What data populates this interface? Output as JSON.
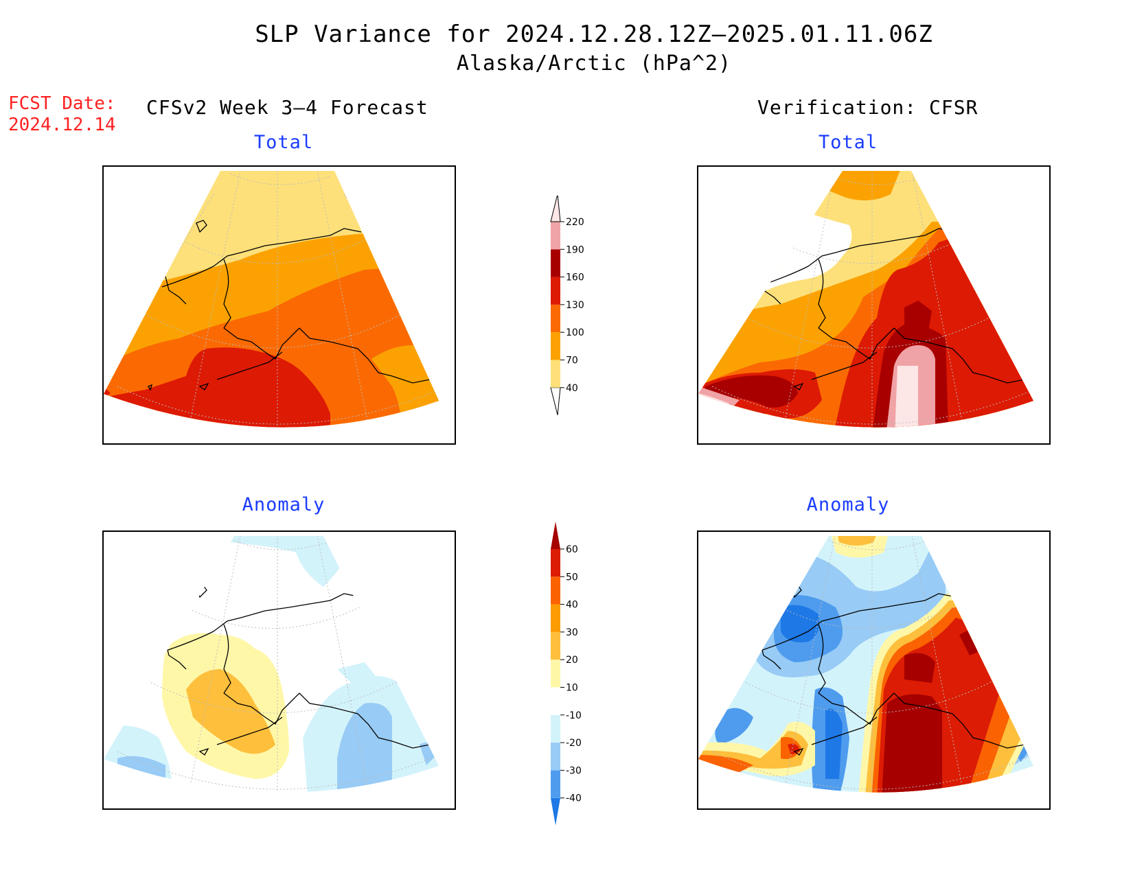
{
  "title": "SLP Variance for 2024.12.28.12Z—2025.01.11.06Z",
  "subtitle": "Alaska/Arctic (hPa^2)",
  "fcst_label": "FCST Date:",
  "fcst_date": "2024.12.14",
  "left_heading": "CFSv2 Week 3—4 Forecast",
  "right_heading": "Verification: CFSR",
  "panel_titles": {
    "fc_total": "Total",
    "vf_total": "Total",
    "fc_anom": "Anomaly",
    "vf_anom": "Anomaly"
  },
  "total_scale": {
    "levels": [
      "40",
      "70",
      "100",
      "130",
      "160",
      "190",
      "220"
    ],
    "colors": [
      "#fde07a",
      "#fba202",
      "#fb6a02",
      "#dd1a04",
      "#a80000",
      "#f0a3a6",
      "#fde6e6"
    ]
  },
  "anomaly_scale": {
    "levels": [
      "-40",
      "-30",
      "-20",
      "-10",
      "10",
      "20",
      "30",
      "40",
      "50",
      "60"
    ],
    "colors": [
      "#1e78e6",
      "#4f9cee",
      "#98cbf5",
      "#d3f3fb",
      "#ffffff",
      "#fff7a8",
      "#fdbf3c",
      "#fb9c02",
      "#fa6202",
      "#dc1c04",
      "#a60000"
    ]
  },
  "regions": "Alaska / Arctic"
}
